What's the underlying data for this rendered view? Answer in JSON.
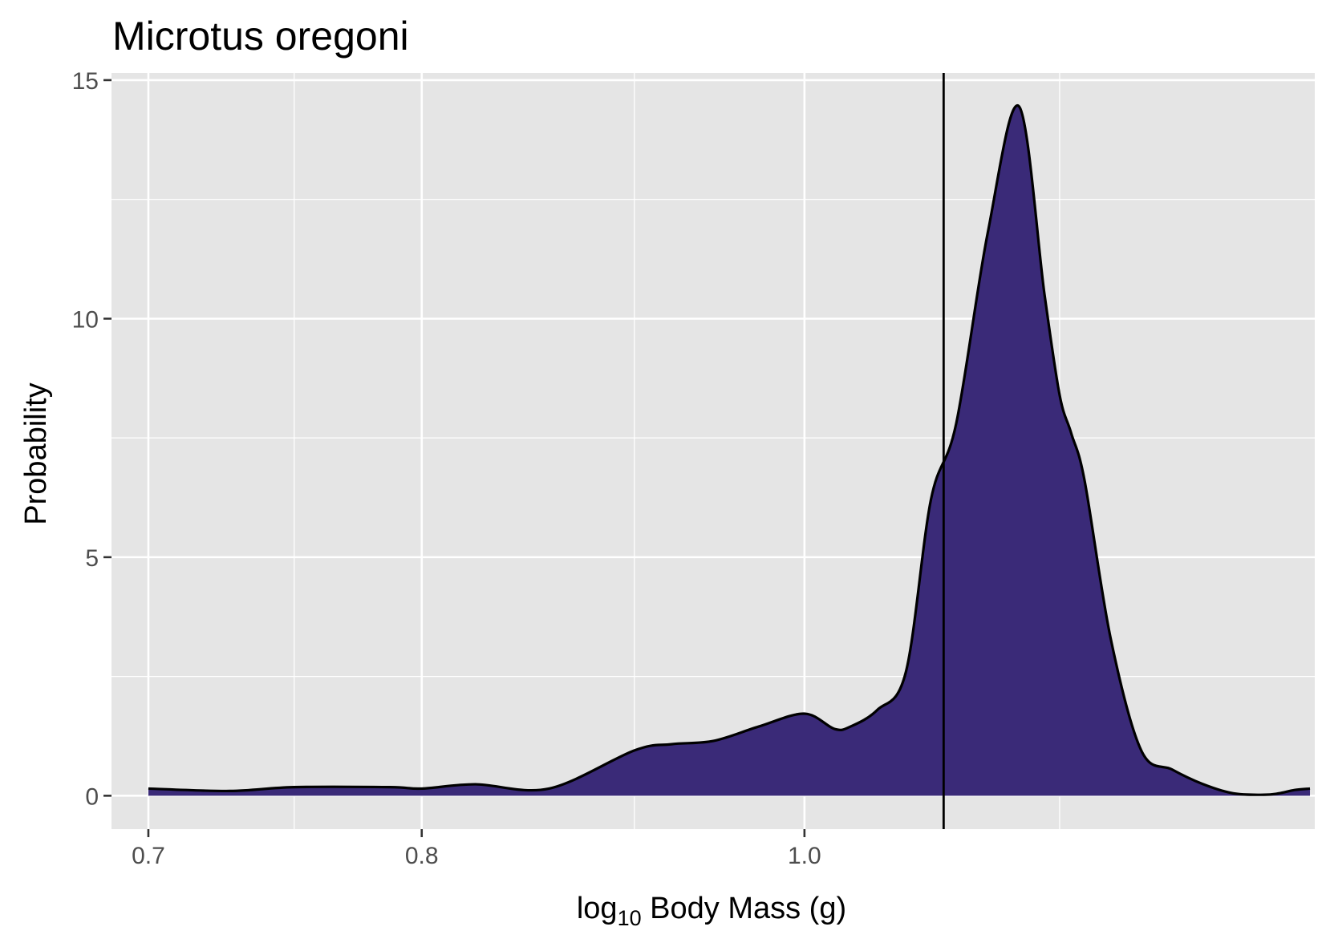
{
  "chart_data": {
    "type": "area",
    "title": "Microtus oregoni",
    "xlabel": {
      "prefix": "log",
      "subscript": "10",
      "suffix": " Body Mass (g)"
    },
    "ylabel": "Probability",
    "x_scale": "reciprocal",
    "xlim": [
      0.6884,
      1.5
    ],
    "ylim": [
      -0.7,
      15.15
    ],
    "x_ticks": [
      {
        "value": 0.7,
        "label": "0.7"
      },
      {
        "value": 0.8,
        "label": "0.8"
      },
      {
        "value": 1.0,
        "label": "1.0"
      }
    ],
    "x_minor_grid": [
      0.75,
      0.9,
      1.1,
      1.2
    ],
    "x_extra_grid": [
      1.75,
      5.0
    ],
    "y_ticks": [
      {
        "value": 0,
        "label": "0"
      },
      {
        "value": 5,
        "label": "5"
      },
      {
        "value": 10,
        "label": "10"
      },
      {
        "value": 15,
        "label": "15"
      }
    ],
    "y_minor_grid": [
      2.5,
      7.5,
      12.5
    ],
    "vline_x": 1.1,
    "fill_color": "#3a2a78",
    "line_color": "#000000",
    "panel_color": "#e5e5e5",
    "grid_color": "#ffffff",
    "grid": true,
    "legend": "none",
    "series": [
      {
        "x": [
          0.7,
          0.727,
          0.75,
          0.787,
          0.8,
          0.823,
          0.857,
          0.9,
          0.92,
          0.944,
          0.971,
          1.0,
          1.02,
          1.031,
          1.05,
          1.071,
          1.09,
          1.11,
          1.136,
          1.163,
          1.186,
          1.2,
          1.211,
          1.224,
          1.25,
          1.282,
          1.316,
          1.351,
          1.389,
          1.429,
          1.449,
          1.471,
          1.493
        ],
        "y": [
          0.15,
          0.1,
          0.18,
          0.18,
          0.15,
          0.24,
          0.15,
          0.95,
          1.08,
          1.15,
          1.45,
          1.72,
          1.4,
          1.45,
          1.8,
          2.6,
          6.2,
          7.8,
          11.8,
          14.45,
          10.5,
          8.4,
          7.6,
          6.6,
          3.3,
          0.95,
          0.55,
          0.25,
          0.05,
          0.02,
          0.05,
          0.12,
          0.15
        ]
      }
    ]
  }
}
